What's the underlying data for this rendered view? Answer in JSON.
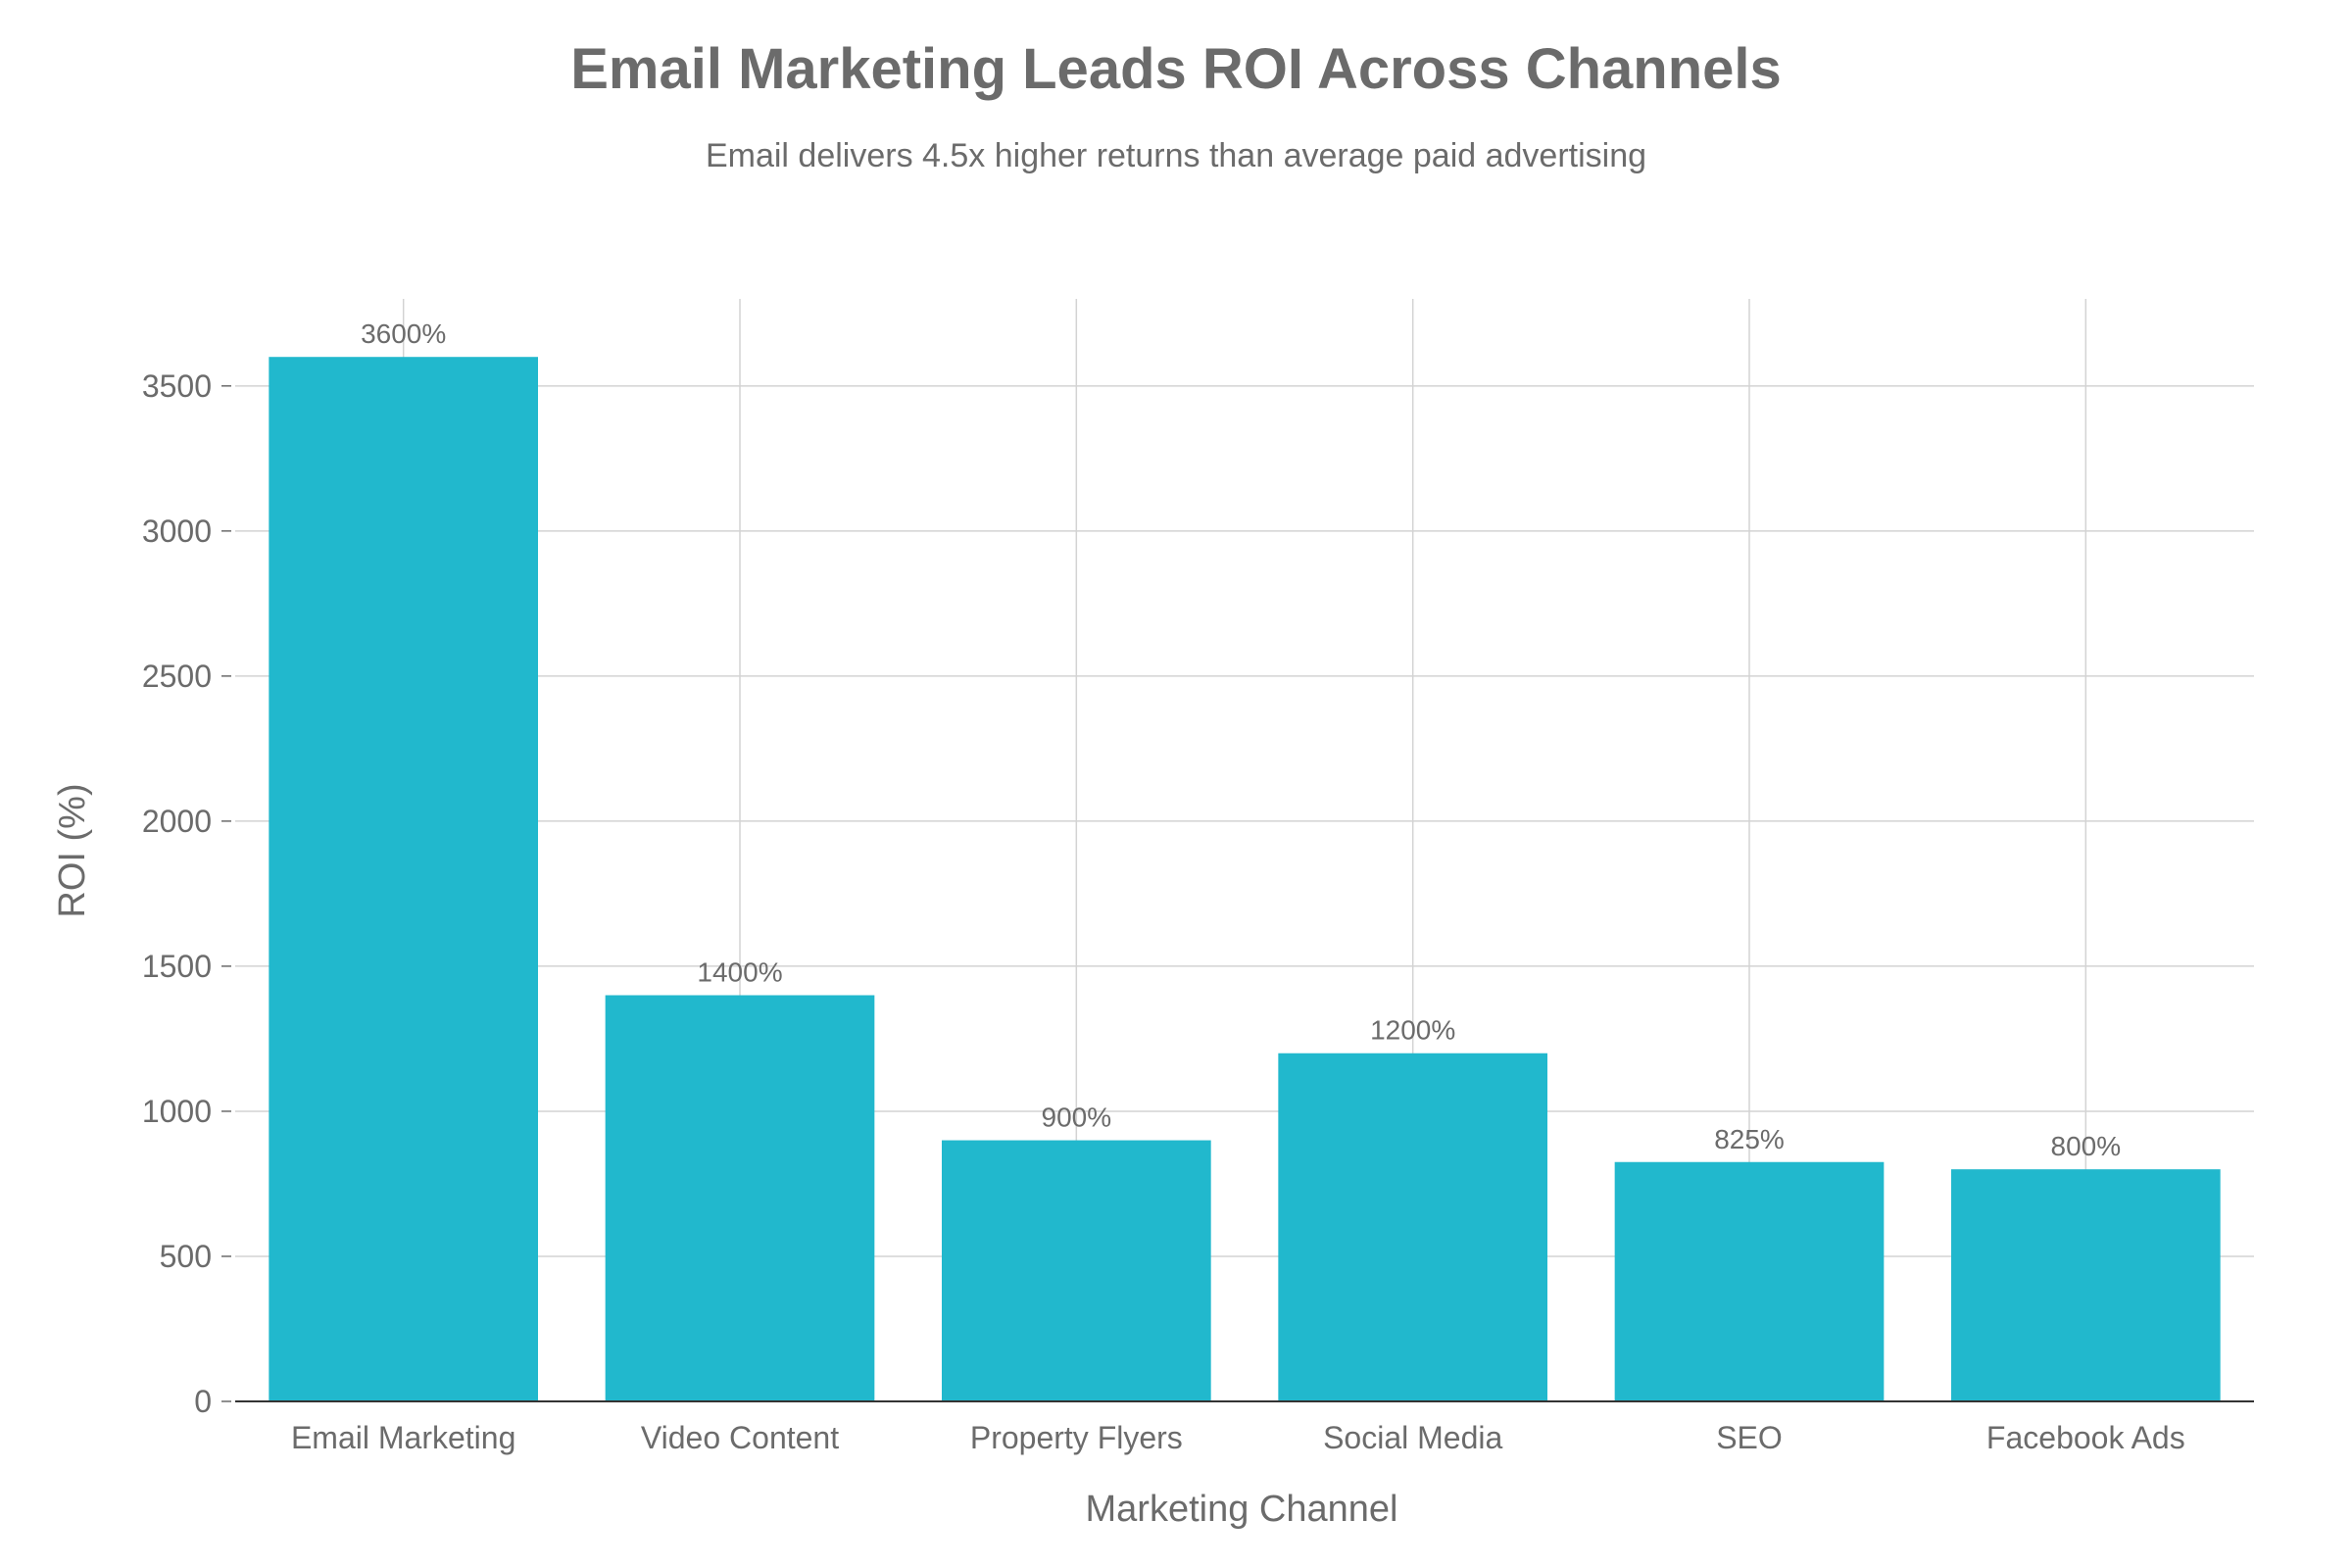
{
  "colors": {
    "bar": "#21B8CD",
    "grid": "#d3d3d3",
    "text": "#6b6b6b"
  },
  "chart_data": {
    "type": "bar",
    "title": "Email Marketing Leads ROI Across Channels",
    "subtitle": "Email delivers 4.5x higher returns than average paid advertising",
    "xlabel": "Marketing Channel",
    "ylabel": "ROI (%)",
    "categories": [
      "Email Marketing",
      "Video Content",
      "Property Flyers",
      "Social Media",
      "SEO",
      "Facebook Ads"
    ],
    "values": [
      3600,
      1400,
      900,
      1200,
      825,
      800
    ],
    "data_labels": [
      "3600%",
      "1400%",
      "900%",
      "1200%",
      "825%",
      "800%"
    ],
    "ylim": [
      0,
      3800
    ],
    "yticks": [
      0,
      500,
      1000,
      1500,
      2000,
      2500,
      3000,
      3500
    ],
    "grid": true,
    "legend": "none"
  }
}
